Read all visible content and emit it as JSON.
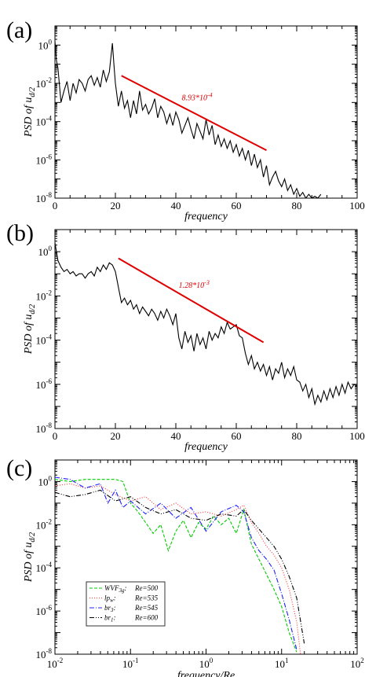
{
  "chart_data": [
    {
      "type": "line",
      "panel_label": "(a)",
      "xlabel": "frequency",
      "ylabel": "PSD of u",
      "ylabel_sub": "d/2",
      "xlim": [
        0,
        100
      ],
      "ylim_log10": [
        -8,
        1
      ],
      "yscale": "log",
      "x_ticks": [
        "0",
        "20",
        "40",
        "60",
        "80",
        "100"
      ],
      "y_ticks": [
        "10^-8",
        "10^-6",
        "10^-4",
        "10^-2",
        "10^0"
      ],
      "series": [
        {
          "color": "#000000",
          "x": [
            0,
            0.5,
            1,
            2,
            3,
            4,
            5,
            6,
            7,
            8,
            9,
            10,
            11,
            12,
            13,
            14,
            15,
            16,
            17,
            18,
            19,
            19.5,
            20,
            21,
            22,
            23,
            24,
            25,
            26,
            27,
            28,
            29,
            30,
            31,
            32,
            33,
            34,
            35,
            36,
            37,
            38,
            39,
            40,
            41,
            42,
            43,
            44,
            45,
            46,
            47,
            48,
            49,
            50,
            51,
            52,
            53,
            54,
            55,
            56,
            57,
            58,
            59,
            60,
            61,
            62,
            63,
            64,
            65,
            66,
            67,
            68,
            69,
            70,
            71,
            72,
            73,
            74,
            75,
            76,
            77,
            78,
            79,
            80,
            81,
            82,
            83,
            84,
            85,
            86,
            87,
            88
          ],
          "y_log10": [
            0.2,
            -0.8,
            -1.2,
            -3.0,
            -2.4,
            -1.9,
            -2.9,
            -2.0,
            -2.5,
            -1.8,
            -2.0,
            -2.4,
            -1.8,
            -1.6,
            -2.1,
            -1.7,
            -2.2,
            -1.3,
            -1.9,
            -1.4,
            0.1,
            -1.0,
            -2.0,
            -3.2,
            -2.4,
            -3.3,
            -2.9,
            -3.8,
            -2.9,
            -3.6,
            -2.4,
            -3.4,
            -3.1,
            -3.6,
            -3.3,
            -2.8,
            -3.8,
            -3.2,
            -3.5,
            -4.1,
            -3.6,
            -4.2,
            -3.5,
            -3.9,
            -4.6,
            -4.2,
            -3.8,
            -4.4,
            -4.9,
            -4.1,
            -4.5,
            -4.9,
            -3.9,
            -4.7,
            -4.2,
            -5.2,
            -4.7,
            -5.3,
            -4.9,
            -5.4,
            -5.0,
            -5.6,
            -5.2,
            -5.8,
            -5.4,
            -6.0,
            -5.5,
            -6.3,
            -5.7,
            -6.4,
            -6.0,
            -6.9,
            -6.3,
            -7.3,
            -6.9,
            -6.6,
            -7.1,
            -7.4,
            -7.0,
            -7.6,
            -7.3,
            -7.8,
            -7.5,
            -7.9,
            -7.7,
            -8.0,
            -7.8,
            -8.0,
            -7.9,
            -8.0,
            -7.8
          ]
        }
      ],
      "fit_line": {
        "x": [
          22,
          70
        ],
        "y_log10": [
          -1.6,
          -5.5
        ],
        "color": "#e00000",
        "label": "8.93*10",
        "label_exp": "-4"
      }
    },
    {
      "type": "line",
      "panel_label": "(b)",
      "xlabel": "frequency",
      "ylabel": "PSD of u",
      "ylabel_sub": "d/2",
      "xlim": [
        0,
        100
      ],
      "ylim_log10": [
        -8,
        1
      ],
      "yscale": "log",
      "x_ticks": [
        "0",
        "20",
        "40",
        "60",
        "80",
        "100"
      ],
      "y_ticks": [
        "10^-8",
        "10^-6",
        "10^-4",
        "10^-2",
        "10^0"
      ],
      "series": [
        {
          "color": "#000000",
          "x": [
            0,
            0.5,
            1,
            2,
            3,
            4,
            5,
            6,
            7,
            8,
            9,
            10,
            11,
            12,
            13,
            14,
            15,
            16,
            17,
            18,
            19,
            20,
            21,
            22,
            23,
            24,
            25,
            26,
            27,
            28,
            29,
            30,
            31,
            32,
            33,
            34,
            35,
            36,
            37,
            38,
            39,
            40,
            41,
            42,
            43,
            44,
            45,
            46,
            47,
            48,
            49,
            50,
            51,
            52,
            53,
            54,
            55,
            56,
            57,
            58,
            59,
            60,
            61,
            62,
            63,
            64,
            65,
            66,
            67,
            68,
            69,
            70,
            71,
            72,
            73,
            74,
            75,
            76,
            77,
            78,
            79,
            80,
            81,
            82,
            83,
            84,
            85,
            86,
            87,
            88,
            89,
            90,
            91,
            92,
            93,
            94,
            95,
            96,
            97,
            98,
            99,
            100
          ],
          "y_log10": [
            0.4,
            0.0,
            -0.4,
            -0.7,
            -0.9,
            -0.8,
            -1.0,
            -0.9,
            -1.1,
            -1.0,
            -1.0,
            -1.2,
            -1.0,
            -0.9,
            -1.1,
            -0.7,
            -0.9,
            -0.6,
            -0.8,
            -0.5,
            -0.6,
            -0.9,
            -1.6,
            -2.3,
            -2.1,
            -2.4,
            -2.2,
            -2.6,
            -2.4,
            -2.8,
            -2.5,
            -2.7,
            -2.9,
            -2.6,
            -2.8,
            -3.1,
            -2.7,
            -3.0,
            -2.6,
            -2.9,
            -3.3,
            -2.8,
            -3.9,
            -4.4,
            -3.6,
            -4.1,
            -3.8,
            -4.5,
            -3.7,
            -4.2,
            -3.9,
            -4.4,
            -3.6,
            -4.0,
            -3.7,
            -3.9,
            -3.4,
            -3.7,
            -3.2,
            -3.5,
            -3.4,
            -3.3,
            -3.8,
            -3.9,
            -4.6,
            -5.1,
            -4.7,
            -5.3,
            -5.0,
            -5.4,
            -5.1,
            -5.6,
            -5.2,
            -5.8,
            -5.3,
            -5.5,
            -5.0,
            -5.7,
            -5.3,
            -5.6,
            -5.2,
            -5.8,
            -5.9,
            -6.3,
            -6.0,
            -6.6,
            -6.2,
            -6.9,
            -6.5,
            -6.8,
            -6.3,
            -6.7,
            -6.2,
            -6.6,
            -6.1,
            -6.5,
            -6.0,
            -6.4,
            -5.9,
            -6.2,
            -6.0,
            -6.1
          ]
        }
      ],
      "fit_line": {
        "x": [
          21,
          69
        ],
        "y_log10": [
          -0.3,
          -4.1
        ],
        "color": "#e00000",
        "label": "1.28*10",
        "label_exp": "-3"
      }
    },
    {
      "type": "line",
      "panel_label": "(c)",
      "xlabel": "frequency/Re",
      "ylabel": "PSD of u",
      "ylabel_sub": "d/2",
      "xscale": "log",
      "yscale": "log",
      "xlim_log10": [
        -2,
        2
      ],
      "ylim_log10": [
        -8,
        1
      ],
      "x_ticks": [
        "10^-2",
        "10^-1",
        "10^0",
        "10^1",
        "10^2"
      ],
      "y_ticks": [
        "10^-8",
        "10^-6",
        "10^-4",
        "10^-2",
        "10^0"
      ],
      "legend": [
        {
          "name": "WVF",
          "sub": "3g",
          "mid": ":",
          "value": "Re=500",
          "color": "#00cc00",
          "dash": "4,2"
        },
        {
          "name": "lp",
          "sub": "w",
          "mid": ":",
          "value": "Re=535",
          "color": "#ff3030",
          "dash": "1,2"
        },
        {
          "name": "br",
          "sub": "3",
          "mid": ":",
          "value": "Re=545",
          "color": "#2020ff",
          "dash": "6,2,1,2"
        },
        {
          "name": "br",
          "sub": "1",
          "mid": ":",
          "value": "Re=600",
          "color": "#000000",
          "dash": "6,2,1,2,1,2"
        }
      ],
      "series": [
        {
          "name": "WVF3g",
          "color": "#00cc00",
          "x_log10": [
            -2,
            -1.8,
            -1.6,
            -1.4,
            -1.2,
            -1.1,
            -1.0,
            -0.9,
            -0.8,
            -0.7,
            -0.6,
            -0.5,
            -0.4,
            -0.3,
            -0.2,
            -0.1,
            0.0,
            0.1,
            0.2,
            0.3,
            0.4,
            0.5,
            0.6,
            0.7,
            0.8,
            0.9,
            1.0,
            1.1,
            1.2
          ],
          "y_log10": [
            0.1,
            0.0,
            0.1,
            0.1,
            0.1,
            0.0,
            -1.0,
            -1.4,
            -1.9,
            -2.4,
            -2.0,
            -3.2,
            -2.3,
            -1.8,
            -2.6,
            -1.9,
            -2.2,
            -1.6,
            -2.0,
            -1.7,
            -2.4,
            -1.3,
            -2.9,
            -3.6,
            -4.3,
            -5.0,
            -5.8,
            -7.0,
            -7.9
          ]
        },
        {
          "name": "lpw",
          "color": "#ff3030",
          "x_log10": [
            -2,
            -1.8,
            -1.6,
            -1.4,
            -1.2,
            -1.0,
            -0.8,
            -0.6,
            -0.4,
            -0.2,
            0.0,
            0.2,
            0.4,
            0.5,
            0.6,
            0.7,
            0.8,
            0.9,
            1.0,
            1.1,
            1.2,
            1.25
          ],
          "y_log10": [
            -0.2,
            -0.1,
            -0.3,
            -0.2,
            -0.6,
            -0.9,
            -0.7,
            -1.3,
            -1.0,
            -1.5,
            -1.4,
            -1.6,
            -1.3,
            -1.1,
            -1.9,
            -2.4,
            -3.0,
            -3.4,
            -4.0,
            -5.0,
            -6.5,
            -8.0
          ]
        },
        {
          "name": "br3",
          "color": "#2020ff",
          "x_log10": [
            -2,
            -1.8,
            -1.6,
            -1.4,
            -1.3,
            -1.2,
            -1.1,
            -1.0,
            -0.8,
            -0.6,
            -0.4,
            -0.2,
            0.0,
            0.2,
            0.4,
            0.5,
            0.6,
            0.7,
            0.8,
            0.9,
            1.0,
            1.1,
            1.2
          ],
          "y_log10": [
            0.2,
            0.1,
            -0.3,
            -0.1,
            -1.0,
            -0.4,
            -1.2,
            -0.9,
            -1.5,
            -1.0,
            -1.7,
            -1.2,
            -2.3,
            -1.4,
            -1.1,
            -1.4,
            -2.6,
            -3.2,
            -3.6,
            -4.1,
            -5.2,
            -6.4,
            -7.8
          ]
        },
        {
          "name": "br1",
          "color": "#000000",
          "x_log10": [
            -2,
            -1.8,
            -1.6,
            -1.4,
            -1.2,
            -1.0,
            -0.8,
            -0.6,
            -0.4,
            -0.2,
            0.0,
            0.2,
            0.4,
            0.5,
            0.6,
            0.7,
            0.8,
            0.9,
            1.0,
            1.1,
            1.2,
            1.3
          ],
          "y_log10": [
            -0.5,
            -0.7,
            -0.6,
            -0.4,
            -0.9,
            -0.7,
            -1.2,
            -1.5,
            -1.3,
            -1.7,
            -1.8,
            -1.5,
            -1.6,
            -1.3,
            -1.8,
            -2.2,
            -2.6,
            -3.0,
            -3.6,
            -4.4,
            -5.4,
            -7.5
          ]
        }
      ]
    }
  ]
}
